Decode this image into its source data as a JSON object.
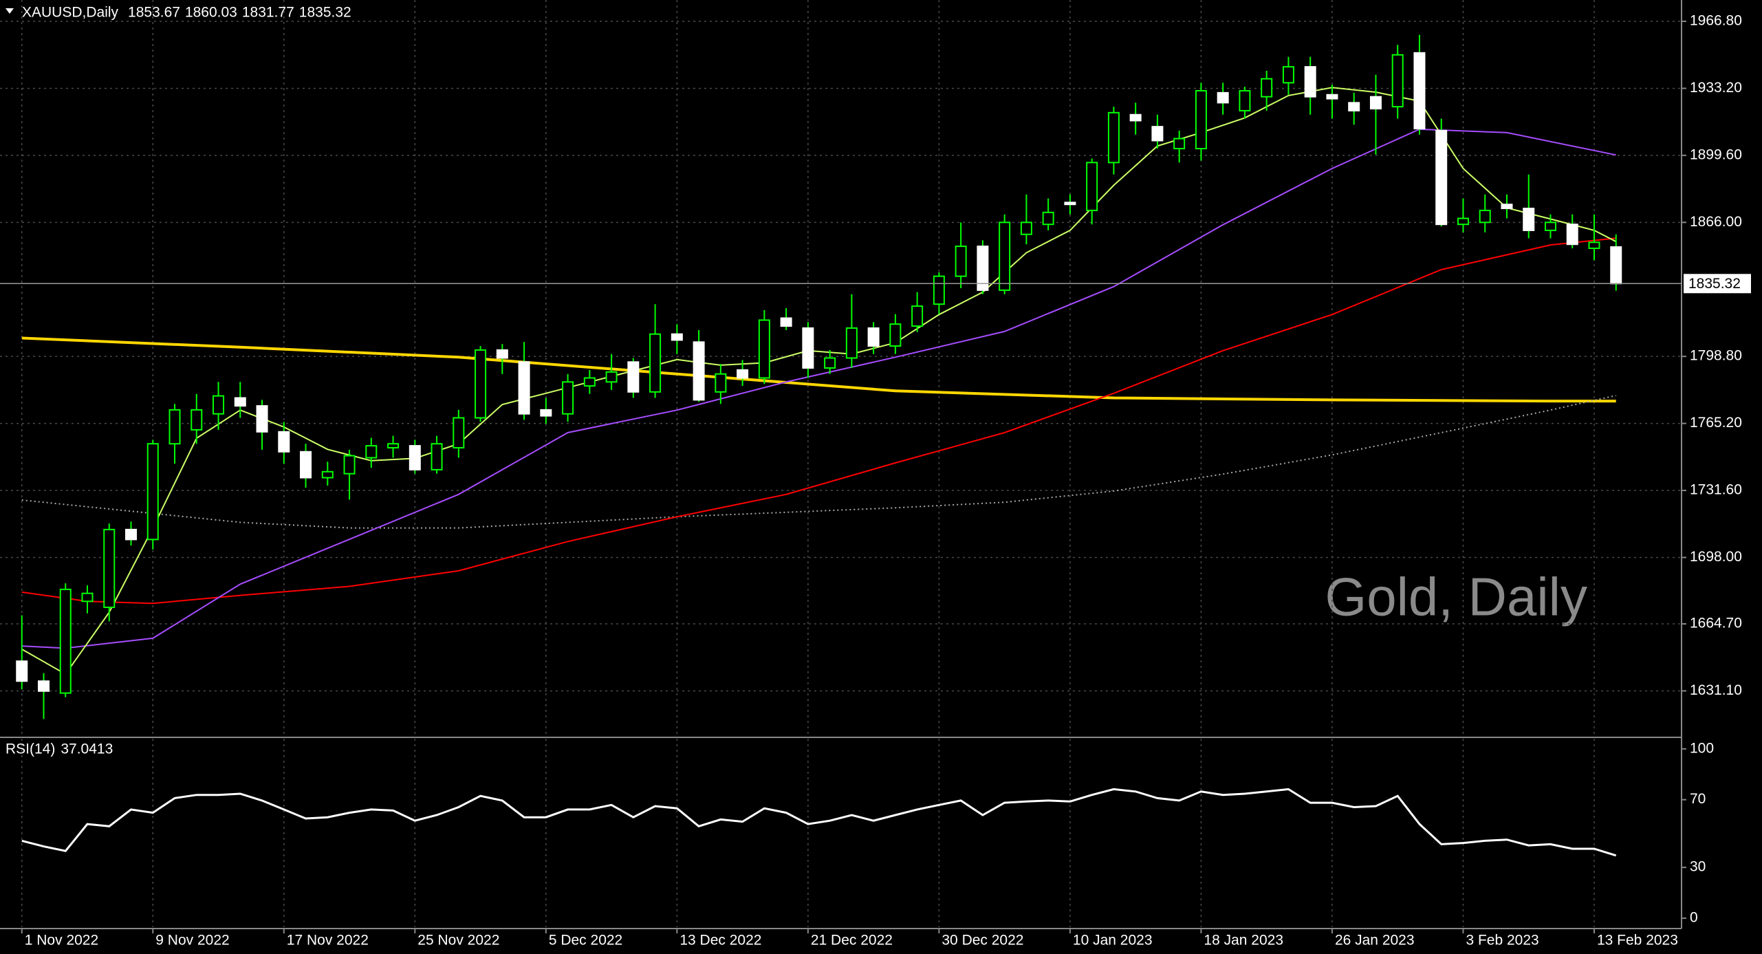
{
  "chart_data": [
    {
      "type": "candlestick",
      "title": "XAUUSD,Daily",
      "watermark": "Gold, Daily",
      "categories": [
        "1 Nov 2022",
        null,
        null,
        null,
        null,
        null,
        "9 Nov 2022",
        null,
        null,
        null,
        null,
        null,
        "17 Nov 2022",
        null,
        null,
        null,
        null,
        null,
        "25 Nov 2022",
        null,
        null,
        null,
        null,
        null,
        "5 Dec 2022",
        null,
        null,
        null,
        null,
        null,
        "13 Dec 2022",
        null,
        null,
        null,
        null,
        null,
        "21 Dec 2022",
        null,
        null,
        null,
        null,
        null,
        "30 Dec 2022",
        null,
        null,
        null,
        null,
        null,
        "10 Jan 2023",
        null,
        null,
        null,
        null,
        null,
        "18 Jan 2023",
        null,
        null,
        null,
        null,
        null,
        "26 Jan 2023",
        null,
        null,
        null,
        null,
        null,
        "3 Feb 2023",
        null,
        null,
        null,
        null,
        null,
        "13 Feb 2023",
        null
      ],
      "open": [
        1646,
        1636,
        1630,
        1676,
        1673,
        1712,
        1707,
        1755,
        1762,
        1770,
        1778,
        1774,
        1761,
        1751,
        1738,
        1740,
        1748,
        1753,
        1754,
        1742,
        1753,
        1768,
        1802,
        1796,
        1772,
        1770,
        1784,
        1786,
        1796,
        1781,
        1810,
        1806,
        1781,
        1792,
        1788,
        1818,
        1813,
        1793,
        1798,
        1813,
        1804,
        1814,
        1825,
        1839,
        1854,
        1832,
        1860,
        1865,
        1876,
        1872,
        1896,
        1920,
        1914,
        1903,
        1903,
        1931,
        1922,
        1929,
        1936,
        1944,
        1930,
        1926,
        1929,
        1924,
        1951,
        1912,
        1865,
        1866,
        1875,
        1873,
        1862,
        1865,
        1853,
        1853.67
      ],
      "high": [
        1669,
        1640,
        1685,
        1684,
        1715,
        1716,
        1757,
        1775,
        1780,
        1786,
        1786,
        1777,
        1766,
        1755,
        1746,
        1752,
        1758,
        1759,
        1757,
        1759,
        1772,
        1804,
        1805,
        1806,
        1778,
        1790,
        1792,
        1800,
        1798,
        1825,
        1815,
        1812,
        1795,
        1797,
        1822,
        1823,
        1816,
        1802,
        1830,
        1816,
        1820,
        1831,
        1841,
        1866,
        1857,
        1870,
        1880,
        1878,
        1880,
        1898,
        1924,
        1926,
        1920,
        1912,
        1936,
        1936,
        1934,
        1942,
        1949,
        1949,
        1935,
        1931,
        1940,
        1955,
        1960,
        1918,
        1878,
        1880,
        1880,
        1890,
        1870,
        1870,
        1870,
        1860.03
      ],
      "low": [
        1632,
        1617,
        1628,
        1670,
        1666,
        1704,
        1702,
        1745,
        1755,
        1762,
        1768,
        1752,
        1745,
        1733,
        1734,
        1727,
        1743,
        1748,
        1740,
        1740,
        1748,
        1766,
        1790,
        1767,
        1765,
        1766,
        1780,
        1782,
        1778,
        1778,
        1800,
        1776,
        1775,
        1784,
        1785,
        1812,
        1788,
        1790,
        1793,
        1800,
        1800,
        1811,
        1820,
        1833,
        1830,
        1830,
        1855,
        1862,
        1870,
        1865,
        1890,
        1910,
        1903,
        1896,
        1897,
        1920,
        1918,
        1922,
        1930,
        1920,
        1918,
        1915,
        1900,
        1918,
        1910,
        1864,
        1861,
        1861,
        1868,
        1858,
        1858,
        1853,
        1847,
        1831.77
      ],
      "close": [
        1636,
        1631,
        1682,
        1680,
        1712,
        1707,
        1755,
        1772,
        1772,
        1779,
        1774,
        1761,
        1751,
        1738,
        1741,
        1749,
        1754,
        1755,
        1742,
        1755,
        1768,
        1802,
        1798,
        1770,
        1769,
        1786,
        1788,
        1791,
        1781,
        1810,
        1807,
        1777,
        1790,
        1788,
        1817,
        1814,
        1793,
        1798,
        1813,
        1804,
        1815,
        1824,
        1839,
        1854,
        1832,
        1866,
        1866,
        1871,
        1875,
        1896,
        1921,
        1917,
        1907,
        1908,
        1932,
        1926,
        1932,
        1938,
        1944,
        1929,
        1928,
        1922,
        1923,
        1950,
        1913,
        1865,
        1868,
        1872,
        1873,
        1862,
        1866,
        1855,
        1856,
        1835.32
      ],
      "up_color": "#00ff00",
      "down_color": "#ffffff",
      "series": [
        {
          "color": "#ffd700",
          "line_width": 4,
          "x": [
            0,
            10,
            20,
            30,
            40,
            50,
            60,
            70,
            73
          ],
          "values": [
            1808,
            1803.4,
            1798.4,
            1790,
            1781.5,
            1778,
            1777,
            1776.4,
            1776.4
          ]
        },
        {
          "color": "#aaaaaa",
          "dotted": true,
          "x": [
            0,
            10,
            15,
            20,
            30,
            40,
            45,
            50,
            55,
            60,
            65,
            70,
            73
          ],
          "values": [
            1726.8,
            1715.6,
            1712.8,
            1712.8,
            1718.4,
            1722.9,
            1725.7,
            1731.3,
            1739.8,
            1749.4,
            1760.6,
            1771.9,
            1779.2
          ]
        },
        {
          "color": "#ff0000",
          "x": [
            0,
            3,
            6,
            10,
            15,
            20,
            25,
            30,
            35,
            40,
            45,
            50,
            55,
            60,
            65,
            70,
            73
          ],
          "values": [
            1680.6,
            1676,
            1675,
            1679,
            1683.5,
            1691.3,
            1706,
            1718.4,
            1729.6,
            1745.4,
            1760.6,
            1780.3,
            1801.7,
            1819.8,
            1842.3,
            1854.7,
            1858.1
          ]
        },
        {
          "color": "#a64dff",
          "x": [
            0,
            2,
            6,
            10,
            15,
            20,
            25,
            30,
            35,
            40,
            45,
            50,
            55,
            60,
            64,
            68,
            73
          ],
          "values": [
            1653.6,
            1652.5,
            1657.5,
            1684.6,
            1707.1,
            1729.6,
            1760.6,
            1771.9,
            1786,
            1798.4,
            1811.3,
            1833.8,
            1864.8,
            1893,
            1912.7,
            1911,
            1899.8
          ]
        },
        {
          "color": "#ccff66",
          "x": [
            0,
            2,
            4,
            6,
            8,
            10,
            12,
            14,
            16,
            18,
            20,
            22,
            24,
            26,
            28,
            30,
            32,
            34,
            36,
            38,
            40,
            42,
            44,
            46,
            48,
            50,
            52,
            54,
            56,
            58,
            60,
            62,
            64,
            66,
            68,
            70,
            72,
            73
          ],
          "values": [
            1652,
            1639.5,
            1670.5,
            1712.8,
            1757.8,
            1771.9,
            1763.4,
            1752.2,
            1746.5,
            1747.7,
            1755,
            1774.7,
            1780.3,
            1786,
            1791.6,
            1797.2,
            1794.4,
            1795.6,
            1801.7,
            1800,
            1805.7,
            1819.8,
            1831,
            1850.8,
            1862,
            1884.6,
            1904.3,
            1911,
            1918.4,
            1929.6,
            1933.6,
            1931.3,
            1926.8,
            1893,
            1873.3,
            1867.7,
            1862,
            1856.4
          ]
        }
      ],
      "xlim": [
        -1,
        76
      ],
      "ylim": [
        1608.5,
        1977.5
      ],
      "yticks": [
        {
          "value": 1966.8,
          "label": "1966.80"
        },
        {
          "value": 1933.2,
          "label": "1933.20"
        },
        {
          "value": 1899.6,
          "label": "1899.60"
        },
        {
          "value": 1866,
          "label": "1866.00"
        },
        {
          "value": 1798.8,
          "label": "1798.80"
        },
        {
          "value": 1765.2,
          "label": "1765.20"
        },
        {
          "value": 1731.6,
          "label": "1731.60"
        },
        {
          "value": 1698,
          "label": "1698.00"
        },
        {
          "value": 1664.7,
          "label": "1664.70"
        },
        {
          "value": 1631.1,
          "label": "1631.10"
        }
      ],
      "grid": true
    },
    {
      "type": "line",
      "title": "RSI(14)",
      "color": "#ffffff",
      "values": [
        45.7,
        42.4,
        39.7,
        55.6,
        54.3,
        64.2,
        62.3,
        70.9,
        72.8,
        72.8,
        73.5,
        69.5,
        64.2,
        58.9,
        59.6,
        62.3,
        64.2,
        63.6,
        57.6,
        60.9,
        65.6,
        72.2,
        69.5,
        59.6,
        59.6,
        64.2,
        64.2,
        66.9,
        59.6,
        66.2,
        64.9,
        54.3,
        58.3,
        57,
        64.9,
        62.3,
        55.6,
        57.6,
        60.9,
        57.6,
        60.9,
        64.2,
        66.9,
        69.5,
        60.9,
        68.2,
        68.9,
        69.5,
        68.9,
        72.8,
        76.2,
        74.8,
        70.9,
        69.5,
        74.8,
        72.8,
        73.5,
        74.8,
        76.2,
        68.2,
        68.2,
        65.6,
        66.2,
        72.2,
        55.6,
        43.7,
        44.4,
        45.7,
        46.4,
        43,
        43.7,
        41,
        41,
        37.0413
      ],
      "ylim": [
        -5.3,
        106
      ],
      "yticks": [
        100,
        70,
        30,
        0
      ]
    }
  ]
}
